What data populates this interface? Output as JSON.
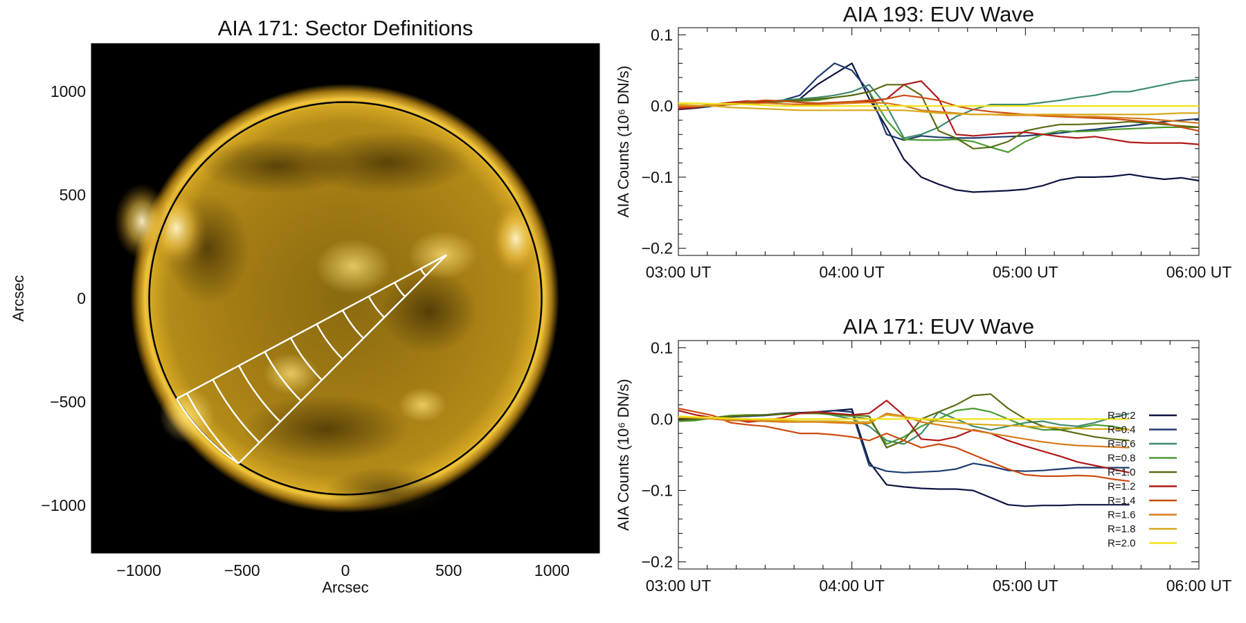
{
  "image": {
    "title": "AIA 171: Sector Definitions",
    "xlabel": "Arcsec",
    "ylabel": "Arcsec",
    "xticks": [
      {
        "v": -1000,
        "label": "−1000"
      },
      {
        "v": -500,
        "label": "−500"
      },
      {
        "v": 0,
        "label": "0"
      },
      {
        "v": 500,
        "label": "500"
      },
      {
        "v": 1000,
        "label": "1000"
      }
    ],
    "yticks": [
      {
        "v": 1000,
        "label": "1000"
      },
      {
        "v": 500,
        "label": "500"
      },
      {
        "v": 0,
        "label": "0"
      },
      {
        "v": -500,
        "label": "−500"
      },
      {
        "v": -1000,
        "label": "−1000"
      }
    ],
    "range": [
      -1230,
      1230
    ],
    "solar_radius_arcsec": 950,
    "sector_apex": [
      490,
      210
    ],
    "sector_edge_angles_deg": [
      -152,
      -135
    ],
    "sector_max_radius": 1650,
    "sector_arc_count": 10
  },
  "chart_data": [
    {
      "type": "line",
      "title": "AIA 193: EUV Wave",
      "ylabel": "AIA Counts (10⁶ DN/s)",
      "xlim": [
        0,
        180
      ],
      "ylim": [
        -0.21,
        0.11
      ],
      "xticks": [
        {
          "v": 0,
          "label": "03:00 UT"
        },
        {
          "v": 60,
          "label": "04:00 UT"
        },
        {
          "v": 120,
          "label": "05:00 UT"
        },
        {
          "v": 180,
          "label": "06:00 UT"
        }
      ],
      "yticks": [
        {
          "v": 0.1,
          "label": "0.1"
        },
        {
          "v": 0.0,
          "label": "0.0"
        },
        {
          "v": -0.1,
          "label": "−0.1"
        },
        {
          "v": -0.2,
          "label": "−0.2"
        }
      ],
      "x": [
        0,
        6,
        12,
        18,
        24,
        30,
        36,
        42,
        48,
        54,
        60,
        66,
        72,
        78,
        84,
        90,
        96,
        102,
        108,
        114,
        120,
        126,
        132,
        138,
        144,
        150,
        156,
        162,
        168,
        174,
        180
      ],
      "series": [
        {
          "name": "R=0.2",
          "color": "#0b1340",
          "values": [
            -0.005,
            -0.003,
            0.0,
            0.002,
            0.003,
            0.005,
            0.007,
            0.01,
            0.03,
            0.045,
            0.06,
            0.01,
            -0.03,
            -0.075,
            -0.1,
            -0.11,
            -0.118,
            -0.121,
            -0.12,
            -0.119,
            -0.117,
            -0.112,
            -0.104,
            -0.1,
            -0.1,
            -0.099,
            -0.096,
            -0.1,
            -0.103,
            -0.101,
            -0.105
          ]
        },
        {
          "name": "R=0.4",
          "color": "#1d3a6e",
          "values": [
            -0.004,
            -0.002,
            0.001,
            0.002,
            0.004,
            0.006,
            0.008,
            0.015,
            0.04,
            0.06,
            0.05,
            0.02,
            -0.04,
            -0.048,
            -0.042,
            -0.044,
            -0.045,
            -0.045,
            -0.044,
            -0.043,
            -0.042,
            -0.04,
            -0.038,
            -0.035,
            -0.033,
            -0.03,
            -0.028,
            -0.025,
            -0.022,
            -0.02,
            -0.018
          ]
        },
        {
          "name": "R=0.6",
          "color": "#3e8a6e",
          "values": [
            -0.003,
            -0.002,
            0.001,
            0.003,
            0.004,
            0.006,
            0.008,
            0.01,
            0.012,
            0.015,
            0.02,
            0.03,
            0.0,
            -0.045,
            -0.04,
            -0.03,
            -0.015,
            -0.005,
            0.002,
            0.002,
            0.002,
            0.005,
            0.008,
            0.012,
            0.015,
            0.02,
            0.02,
            0.025,
            0.03,
            0.035,
            0.037
          ]
        },
        {
          "name": "R=0.8",
          "color": "#4a9a30",
          "values": [
            -0.003,
            -0.001,
            0.002,
            0.003,
            0.004,
            0.005,
            0.006,
            0.007,
            0.008,
            0.012,
            0.015,
            0.02,
            -0.02,
            -0.047,
            -0.048,
            -0.048,
            -0.047,
            -0.05,
            -0.058,
            -0.065,
            -0.05,
            -0.04,
            -0.035,
            -0.036,
            -0.035,
            -0.033,
            -0.032,
            -0.031,
            -0.03,
            -0.03,
            -0.03
          ]
        },
        {
          "name": "R=1.0",
          "color": "#5a6a12",
          "values": [
            -0.002,
            0.0,
            0.002,
            0.004,
            0.005,
            0.006,
            0.007,
            0.008,
            0.01,
            0.012,
            0.015,
            0.02,
            0.03,
            0.03,
            0.015,
            -0.035,
            -0.045,
            -0.06,
            -0.058,
            -0.05,
            -0.035,
            -0.03,
            -0.026,
            -0.026,
            -0.025,
            -0.024,
            -0.022,
            -0.024,
            -0.026,
            -0.028,
            -0.03
          ]
        },
        {
          "name": "R=1.2",
          "color": "#b01818",
          "values": [
            -0.004,
            -0.002,
            0.002,
            0.005,
            0.007,
            0.005,
            0.003,
            0.002,
            0.003,
            0.004,
            0.005,
            0.006,
            0.01,
            0.03,
            0.035,
            0.01,
            -0.04,
            -0.042,
            -0.04,
            -0.038,
            -0.037,
            -0.04,
            -0.043,
            -0.045,
            -0.043,
            -0.047,
            -0.051,
            -0.052,
            -0.052,
            -0.052,
            -0.054
          ]
        },
        {
          "name": "R=1.4",
          "color": "#cc4a10",
          "values": [
            -0.002,
            -0.001,
            0.002,
            0.004,
            0.006,
            0.008,
            0.007,
            0.005,
            0.004,
            0.005,
            0.006,
            0.008,
            0.01,
            0.015,
            0.012,
            0.008,
            0.0,
            -0.005,
            -0.008,
            -0.01,
            -0.012,
            -0.014,
            -0.015,
            -0.016,
            -0.017,
            -0.018,
            -0.02,
            -0.022,
            -0.024,
            -0.03,
            -0.035
          ]
        },
        {
          "name": "R=1.6",
          "color": "#d87a18",
          "values": [
            0.0,
            0.0,
            0.001,
            0.002,
            0.003,
            0.004,
            0.003,
            0.002,
            0.002,
            0.003,
            0.004,
            0.005,
            0.004,
            0.0,
            -0.006,
            -0.008,
            -0.01,
            -0.012,
            -0.012,
            -0.013,
            -0.013,
            -0.013,
            -0.014,
            -0.015,
            -0.015,
            -0.016,
            -0.017,
            -0.018,
            -0.02,
            -0.022,
            -0.024
          ]
        },
        {
          "name": "R=1.8",
          "color": "#d8a818",
          "values": [
            0.002,
            0.001,
            0.0,
            -0.002,
            -0.003,
            -0.004,
            -0.005,
            -0.006,
            -0.006,
            -0.006,
            -0.006,
            -0.006,
            -0.006,
            -0.006,
            -0.008,
            -0.01,
            -0.011,
            -0.012,
            -0.012,
            -0.012,
            -0.012,
            -0.012,
            -0.012,
            -0.012,
            -0.012,
            -0.012,
            -0.012,
            -0.012,
            -0.011,
            -0.01,
            -0.01
          ]
        },
        {
          "name": "R=2.0",
          "color": "#f2e21a",
          "values": [
            0.004,
            0.004,
            0.003,
            0.003,
            0.002,
            0.001,
            0.0,
            0.0,
            0.0,
            0.0,
            0.0,
            0.0,
            0.0,
            0.0,
            0.0,
            0.0,
            0.0,
            0.0,
            0.0,
            0.0,
            0.0,
            0.0,
            0.0,
            0.0,
            0.0,
            0.0,
            0.0,
            0.0,
            0.0,
            0.0,
            0.0
          ]
        }
      ]
    },
    {
      "type": "line",
      "title": "AIA 171: EUV Wave",
      "ylabel": "AIA Counts (10⁶ DN/s)",
      "xlim": [
        0,
        180
      ],
      "ylim": [
        -0.21,
        0.11
      ],
      "xticks": [
        {
          "v": 0,
          "label": "03:00 UT"
        },
        {
          "v": 60,
          "label": "04:00 UT"
        },
        {
          "v": 120,
          "label": "05:00 UT"
        },
        {
          "v": 180,
          "label": "06:00 UT"
        }
      ],
      "yticks": [
        {
          "v": 0.1,
          "label": "0.1"
        },
        {
          "v": 0.0,
          "label": "0.0"
        },
        {
          "v": -0.1,
          "label": "−0.1"
        },
        {
          "v": -0.2,
          "label": "−0.2"
        }
      ],
      "legend_position": "right",
      "x": [
        0,
        6,
        12,
        18,
        24,
        30,
        36,
        42,
        48,
        54,
        60,
        66,
        72,
        78,
        84,
        90,
        96,
        102,
        108,
        114,
        120,
        126,
        132,
        138,
        144,
        150,
        156
      ],
      "series": [
        {
          "name": "R=0.2",
          "color": "#0b1340",
          "values": [
            0.0,
            0.0,
            0.002,
            0.004,
            0.004,
            0.006,
            0.008,
            0.009,
            0.01,
            0.012,
            0.014,
            -0.06,
            -0.092,
            -0.095,
            -0.097,
            -0.098,
            -0.098,
            -0.1,
            -0.11,
            -0.12,
            -0.122,
            -0.121,
            -0.121,
            -0.12,
            -0.12,
            -0.12,
            -0.12
          ]
        },
        {
          "name": "R=0.4",
          "color": "#1d3a6e",
          "values": [
            -0.002,
            0.0,
            0.002,
            0.003,
            0.004,
            0.005,
            0.007,
            0.008,
            0.01,
            0.012,
            0.01,
            -0.065,
            -0.073,
            -0.075,
            -0.074,
            -0.073,
            -0.07,
            -0.062,
            -0.066,
            -0.072,
            -0.073,
            -0.072,
            -0.07,
            -0.068,
            -0.068,
            -0.068,
            -0.068
          ]
        },
        {
          "name": "R=0.6",
          "color": "#3e8a6e",
          "values": [
            -0.003,
            -0.001,
            0.001,
            0.004,
            0.005,
            0.006,
            0.007,
            0.008,
            0.01,
            0.005,
            0.0,
            -0.01,
            -0.03,
            -0.035,
            -0.02,
            0.01,
            0.0,
            -0.01,
            -0.015,
            -0.01,
            -0.005,
            -0.003,
            -0.008,
            -0.01,
            -0.005,
            0.002,
            0.008
          ]
        },
        {
          "name": "R=0.8",
          "color": "#4a9a30",
          "values": [
            -0.003,
            -0.002,
            0.002,
            0.005,
            0.006,
            0.006,
            0.007,
            0.008,
            0.008,
            0.006,
            0.004,
            0.0,
            -0.035,
            -0.025,
            -0.01,
            0.0,
            0.012,
            0.015,
            0.01,
            0.0,
            -0.01,
            -0.015,
            -0.015,
            -0.012,
            -0.008,
            -0.01,
            -0.015
          ]
        },
        {
          "name": "R=1.0",
          "color": "#5a6a12",
          "values": [
            -0.002,
            0.0,
            0.002,
            0.004,
            0.005,
            0.006,
            0.007,
            0.008,
            0.008,
            0.007,
            0.006,
            0.004,
            -0.04,
            -0.03,
            0.0,
            0.01,
            0.02,
            0.033,
            0.035,
            0.015,
            0.0,
            -0.01,
            -0.015,
            -0.02,
            -0.025,
            -0.028,
            -0.03
          ]
        },
        {
          "name": "R=1.2",
          "color": "#b01818",
          "values": [
            0.012,
            0.006,
            0.002,
            0.0,
            -0.004,
            -0.002,
            0.002,
            0.008,
            0.01,
            0.008,
            0.006,
            0.008,
            0.026,
            0.005,
            -0.028,
            -0.03,
            -0.025,
            -0.015,
            -0.02,
            -0.03,
            -0.038,
            -0.045,
            -0.052,
            -0.06,
            -0.065,
            -0.07,
            -0.075
          ]
        },
        {
          "name": "R=1.4",
          "color": "#cc4a10",
          "values": [
            0.015,
            0.01,
            0.005,
            -0.005,
            -0.008,
            -0.01,
            -0.015,
            -0.02,
            -0.02,
            -0.022,
            -0.025,
            -0.03,
            -0.02,
            -0.03,
            -0.04,
            -0.035,
            -0.04,
            -0.05,
            -0.06,
            -0.07,
            -0.078,
            -0.08,
            -0.08,
            -0.079,
            -0.08,
            -0.084,
            -0.087
          ]
        },
        {
          "name": "R=1.6",
          "color": "#d87a18",
          "values": [
            0.003,
            0.002,
            0.0,
            -0.002,
            -0.002,
            -0.003,
            -0.004,
            -0.004,
            -0.004,
            -0.005,
            -0.006,
            -0.006,
            0.008,
            0.004,
            -0.004,
            -0.008,
            -0.012,
            -0.016,
            -0.02,
            -0.024,
            -0.028,
            -0.032,
            -0.035,
            -0.037,
            -0.038,
            -0.039,
            -0.04
          ]
        },
        {
          "name": "R=1.8",
          "color": "#d8a818",
          "values": [
            0.002,
            0.002,
            0.001,
            0.0,
            0.0,
            -0.001,
            -0.002,
            -0.003,
            -0.003,
            -0.003,
            -0.004,
            -0.004,
            0.006,
            0.003,
            0.0,
            -0.003,
            -0.005,
            -0.007,
            -0.008,
            -0.009,
            -0.01,
            -0.011,
            -0.012,
            -0.013,
            -0.014,
            -0.014,
            -0.015
          ]
        },
        {
          "name": "R=2.0",
          "color": "#f2e21a",
          "values": [
            0.004,
            0.003,
            0.002,
            0.001,
            0.0,
            0.0,
            0.0,
            0.0,
            0.0,
            0.0,
            0.0,
            0.0,
            0.0,
            0.0,
            0.0,
            0.0,
            0.0,
            0.0,
            0.0,
            0.0,
            0.0,
            0.0,
            0.0,
            0.0,
            0.0,
            0.0,
            0.0
          ]
        }
      ]
    }
  ]
}
